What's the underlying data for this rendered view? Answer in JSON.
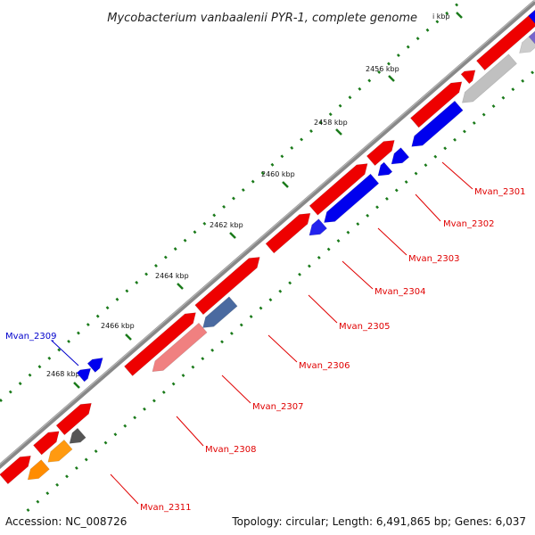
{
  "title": "Mycobacterium vanbaalenii PYR-1, complete genome",
  "footer": {
    "accession": "Accession: NC_008726",
    "stats": "Topology: circular; Length: 6,491,865 bp; Genes: 6,037"
  },
  "colors": {
    "backbone": "#888888",
    "tick": "#1a7a1a",
    "label_line_forward": "#e00000",
    "label_line_reverse": "#0000cc"
  },
  "ticks": [
    {
      "label": "2456 kbp"
    },
    {
      "label": "2458 kbp"
    },
    {
      "label": "2460 kbp"
    },
    {
      "label": "2462 kbp"
    },
    {
      "label": "2464 kbp"
    },
    {
      "label": "2466 kbp"
    },
    {
      "label": "2468 kbp"
    },
    {
      "label": "i kbp"
    }
  ],
  "gene_labels": [
    {
      "name": "Mvan_2301",
      "color": "#e00000"
    },
    {
      "name": "Mvan_2302",
      "color": "#e00000"
    },
    {
      "name": "Mvan_2303",
      "color": "#e00000"
    },
    {
      "name": "Mvan_2304",
      "color": "#e00000"
    },
    {
      "name": "Mvan_2305",
      "color": "#e00000"
    },
    {
      "name": "Mvan_2306",
      "color": "#e00000"
    },
    {
      "name": "Mvan_2307",
      "color": "#e00000"
    },
    {
      "name": "Mvan_2308",
      "color": "#e00000"
    },
    {
      "name": "Mvan_2309",
      "color": "#0000cc"
    },
    {
      "name": "Mvan_2311",
      "color": "#e00000"
    }
  ]
}
